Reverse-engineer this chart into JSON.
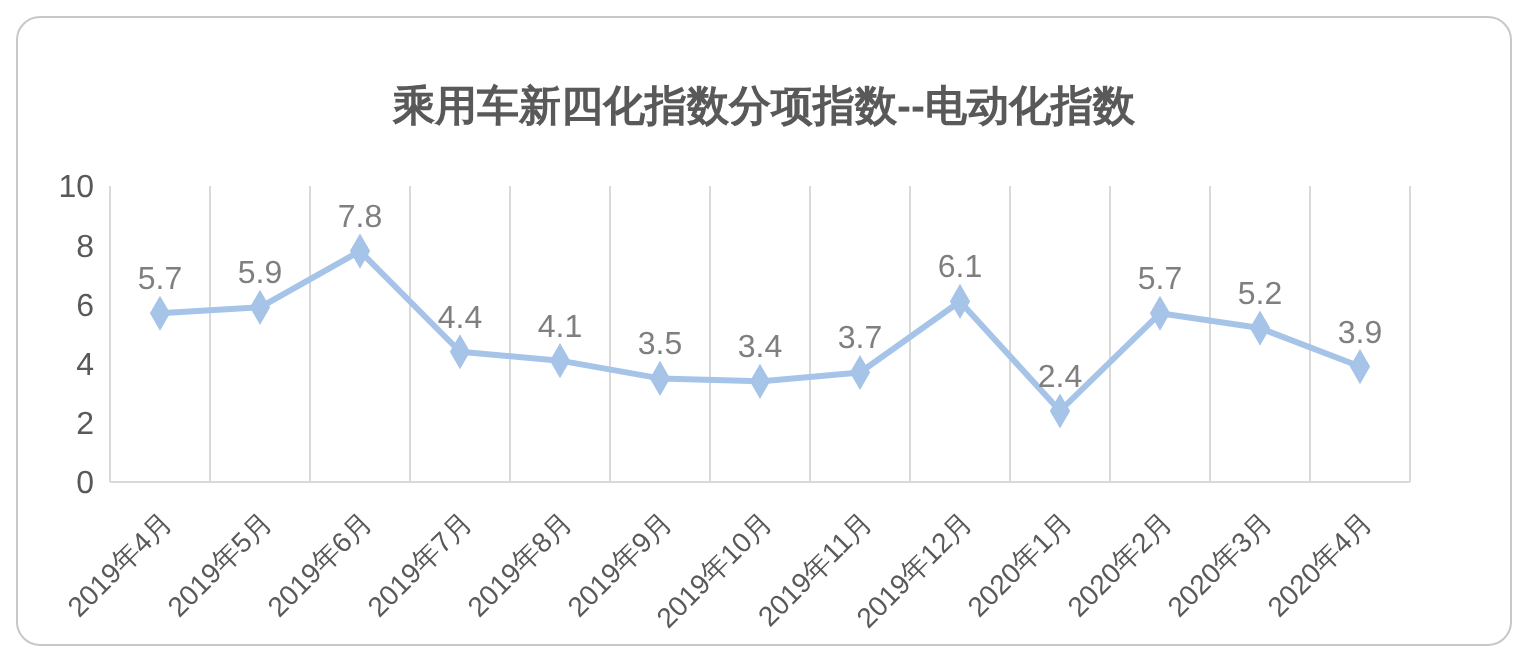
{
  "chart_data": {
    "type": "line",
    "title": "乘用车新四化指数分项指数--电动化指数",
    "categories": [
      "2019年4月",
      "2019年5月",
      "2019年6月",
      "2019年7月",
      "2019年8月",
      "2019年9月",
      "2019年10月",
      "2019年11月",
      "2019年12月",
      "2020年1月",
      "2020年2月",
      "2020年3月",
      "2020年4月"
    ],
    "series": [
      {
        "color": "#a6c3e8",
        "values": [
          5.7,
          5.9,
          7.8,
          4.4,
          4.1,
          3.5,
          3.4,
          3.7,
          6.1,
          2.4,
          5.7,
          5.2,
          3.9
        ]
      }
    ],
    "ylim": [
      0,
      10
    ],
    "yticks": [
      0,
      2,
      4,
      6,
      8,
      10
    ],
    "grid": "x",
    "legend": false,
    "marker": "diamond",
    "line_style": "solid",
    "data_labels": true
  }
}
